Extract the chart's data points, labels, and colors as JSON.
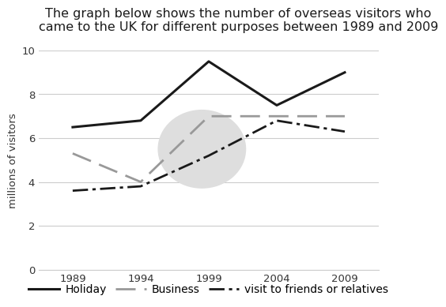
{
  "title": "The graph below shows the number of overseas visitors who\ncame to the UK for different purposes between 1989 and 2009",
  "ylabel": "millions of visitors",
  "years": [
    1989,
    1994,
    1999,
    2004,
    2009
  ],
  "holiday": [
    6.5,
    6.8,
    9.5,
    7.5,
    9.0
  ],
  "business": [
    5.3,
    4.0,
    7.0,
    7.0,
    7.0
  ],
  "friends": [
    3.6,
    3.8,
    5.2,
    6.8,
    6.3
  ],
  "ylim": [
    0,
    10
  ],
  "yticks": [
    0,
    2,
    4,
    6,
    8,
    10
  ],
  "xticks": [
    1989,
    1994,
    1999,
    2004,
    2009
  ],
  "dark_color": "#1a1a1a",
  "gray_color": "#999999",
  "background_color": "#ffffff",
  "watermark_color": "#dedede",
  "grid_color": "#cccccc",
  "title_fontsize": 11.5,
  "axis_fontsize": 9.5,
  "legend_fontsize": 10
}
